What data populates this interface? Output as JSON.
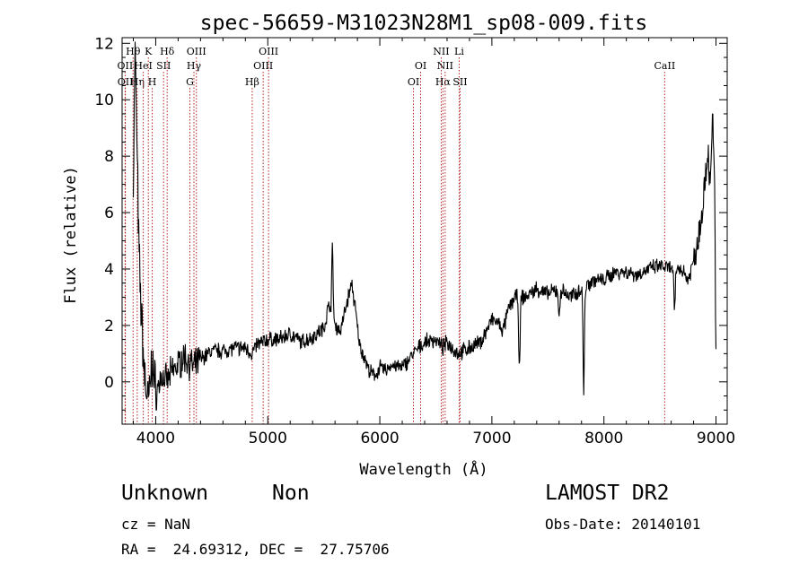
{
  "chart_data": {
    "type": "line",
    "title": "spec-56659-M31023N28M1_sp08-009.fits",
    "xlabel": "Wavelength (Å)",
    "ylabel": "Flux (relative)",
    "xlim": [
      3700,
      9100
    ],
    "ylim": [
      -1.5,
      12.2
    ],
    "x_ticks": [
      4000,
      5000,
      6000,
      7000,
      8000,
      9000
    ],
    "y_ticks": [
      0,
      2,
      4,
      6,
      8,
      10,
      12
    ],
    "grid": false,
    "line_color": "#000000",
    "marker_color": "#b22222",
    "anchor_points": [
      [
        3800,
        7.0
      ],
      [
        3815,
        11.8
      ],
      [
        3830,
        9.0
      ],
      [
        3850,
        4.5
      ],
      [
        3870,
        2.5
      ],
      [
        3900,
        0.2
      ],
      [
        3935,
        -0.8
      ],
      [
        3970,
        0.8
      ],
      [
        4000,
        -0.5
      ],
      [
        4050,
        0.2
      ],
      [
        4100,
        0.0
      ],
      [
        4150,
        0.4
      ],
      [
        4200,
        0.6
      ],
      [
        4250,
        0.9
      ],
      [
        4300,
        0.7
      ],
      [
        4340,
        0.5
      ],
      [
        4400,
        0.8
      ],
      [
        4500,
        1.1
      ],
      [
        4600,
        1.1
      ],
      [
        4700,
        1.2
      ],
      [
        4800,
        1.2
      ],
      [
        4860,
        1.0
      ],
      [
        4900,
        1.3
      ],
      [
        5000,
        1.5
      ],
      [
        5100,
        1.5
      ],
      [
        5200,
        1.7
      ],
      [
        5300,
        1.4
      ],
      [
        5400,
        1.6
      ],
      [
        5500,
        1.9
      ],
      [
        5550,
        2.8
      ],
      [
        5600,
        2.0
      ],
      [
        5650,
        1.8
      ],
      [
        5700,
        2.7
      ],
      [
        5750,
        3.5
      ],
      [
        5780,
        2.6
      ],
      [
        5820,
        1.3
      ],
      [
        5870,
        0.8
      ],
      [
        5900,
        0.4
      ],
      [
        5950,
        0.2
      ],
      [
        6000,
        0.5
      ],
      [
        6050,
        0.4
      ],
      [
        6100,
        0.6
      ],
      [
        6200,
        0.5
      ],
      [
        6300,
        1.0
      ],
      [
        6400,
        1.4
      ],
      [
        6500,
        1.5
      ],
      [
        6560,
        1.2
      ],
      [
        6600,
        1.4
      ],
      [
        6650,
        1.2
      ],
      [
        6700,
        1.0
      ],
      [
        6800,
        1.2
      ],
      [
        6900,
        1.4
      ],
      [
        7000,
        2.2
      ],
      [
        7050,
        2.1
      ],
      [
        7100,
        1.8
      ],
      [
        7150,
        2.6
      ],
      [
        7200,
        3.0
      ],
      [
        7300,
        3.0
      ],
      [
        7400,
        3.3
      ],
      [
        7500,
        3.1
      ],
      [
        7600,
        3.3
      ],
      [
        7700,
        3.0
      ],
      [
        7800,
        3.3
      ],
      [
        7900,
        3.6
      ],
      [
        8000,
        3.6
      ],
      [
        8100,
        3.9
      ],
      [
        8200,
        3.9
      ],
      [
        8300,
        3.8
      ],
      [
        8400,
        4.0
      ],
      [
        8500,
        4.1
      ],
      [
        8600,
        4.0
      ],
      [
        8700,
        4.0
      ],
      [
        8750,
        3.6
      ],
      [
        8800,
        4.3
      ],
      [
        8850,
        5.3
      ],
      [
        8900,
        7.0
      ],
      [
        8930,
        8.3
      ],
      [
        8950,
        6.8
      ],
      [
        8970,
        8.6
      ],
      [
        9000,
        7.0
      ]
    ],
    "narrow_features": [
      [
        5577,
        4.7
      ],
      [
        7246,
        0.3
      ],
      [
        7600,
        2.2
      ],
      [
        7820,
        -0.35
      ],
      [
        8630,
        2.4
      ],
      [
        8968,
        9.2
      ],
      [
        9000,
        1.2
      ]
    ],
    "line_markers": [
      {
        "label": "OII",
        "x": 3727,
        "row": 2
      },
      {
        "label": "OII",
        "x": 3729,
        "row": 3
      },
      {
        "label": "Hθ",
        "x": 3798,
        "row": 1
      },
      {
        "label": "Hη",
        "x": 3835,
        "row": 3
      },
      {
        "label": "HeI",
        "x": 3889,
        "row": 2
      },
      {
        "label": "K",
        "x": 3934,
        "row": 1
      },
      {
        "label": "H",
        "x": 3969,
        "row": 3
      },
      {
        "label": "SII",
        "x": 4070,
        "row": 2
      },
      {
        "label": "Hδ",
        "x": 4102,
        "row": 1
      },
      {
        "label": "G",
        "x": 4305,
        "row": 3
      },
      {
        "label": "Hγ",
        "x": 4341,
        "row": 2
      },
      {
        "label": "OIII",
        "x": 4363,
        "row": 1
      },
      {
        "label": "Hβ",
        "x": 4861,
        "row": 3
      },
      {
        "label": "OIII",
        "x": 4959,
        "row": 2
      },
      {
        "label": "OIII",
        "x": 5007,
        "row": 1
      },
      {
        "label": "OI",
        "x": 6300,
        "row": 3
      },
      {
        "label": "OI",
        "x": 6364,
        "row": 2
      },
      {
        "label": "NII",
        "x": 6548,
        "row": 1
      },
      {
        "label": "Hα",
        "x": 6563,
        "row": 3
      },
      {
        "label": "NII",
        "x": 6583,
        "row": 2
      },
      {
        "label": "Li",
        "x": 6708,
        "row": 1
      },
      {
        "label": "SII",
        "x": 6716,
        "row": 3
      },
      {
        "label": "CaII",
        "x": 8542,
        "row": 2
      }
    ]
  },
  "info": {
    "class_label": "Unknown",
    "subclass_label": "Non",
    "survey": "LAMOST DR2",
    "cz": "cz = NaN",
    "obs_date": "Obs-Date: 20140101",
    "coords": "RA =  24.69312, DEC =  27.75706"
  }
}
